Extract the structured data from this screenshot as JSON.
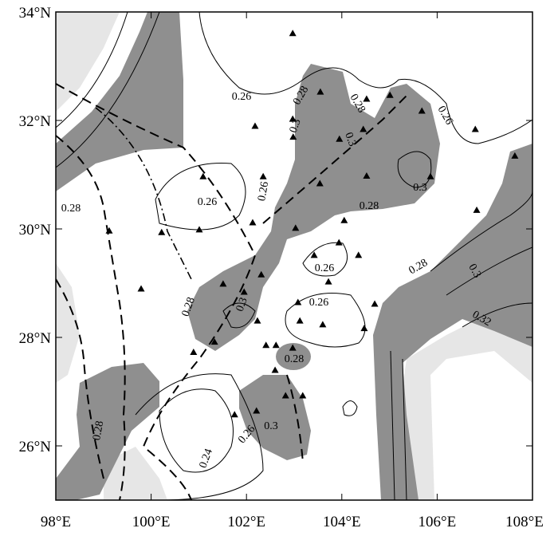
{
  "map": {
    "xlim": [
      98,
      108
    ],
    "ylim": [
      25,
      34
    ],
    "xticks": [
      {
        "value": 98,
        "label": "98°E"
      },
      {
        "value": 100,
        "label": "100°E"
      },
      {
        "value": 102,
        "label": "102°E"
      },
      {
        "value": 104,
        "label": "104°E"
      },
      {
        "value": 106,
        "label": "106°E"
      },
      {
        "value": 108,
        "label": "108°E"
      }
    ],
    "yticks": [
      {
        "value": 26,
        "label": "26°N"
      },
      {
        "value": 28,
        "label": "28°N"
      },
      {
        "value": 30,
        "label": "30°N"
      },
      {
        "value": 32,
        "label": "32°N"
      },
      {
        "value": 34,
        "label": "34°N"
      }
    ],
    "contour_labels": [
      "0.26",
      "0.28",
      "0.28",
      "0.3",
      "0.3",
      "0.26",
      "0.3",
      "0.26",
      "0.26",
      "0.28",
      "0.28",
      "0.26",
      "0.26",
      "0.28",
      "0.3",
      "0.32",
      "0.3",
      "0.28",
      "0.28",
      "0.3",
      "0.24",
      "0.26",
      "0.28"
    ],
    "stations": [
      [
        102.97,
        33.6
      ],
      [
        103.55,
        32.52
      ],
      [
        104.52,
        32.39
      ],
      [
        105.68,
        32.17
      ],
      [
        105.01,
        32.46
      ],
      [
        104.45,
        31.83
      ],
      [
        106.8,
        31.83
      ],
      [
        102.18,
        31.89
      ],
      [
        102.97,
        32.02
      ],
      [
        103.95,
        31.65
      ],
      [
        102.98,
        31.69
      ],
      [
        107.63,
        31.34
      ],
      [
        101.09,
        30.96
      ],
      [
        102.35,
        30.96
      ],
      [
        104.52,
        30.97
      ],
      [
        105.86,
        30.96
      ],
      [
        103.54,
        30.83
      ],
      [
        106.83,
        30.34
      ],
      [
        99.12,
        29.96
      ],
      [
        100.22,
        29.93
      ],
      [
        101.01,
        29.98
      ],
      [
        103.03,
        30.01
      ],
      [
        102.13,
        30.11
      ],
      [
        104.05,
        30.15
      ],
      [
        103.94,
        29.74
      ],
      [
        103.42,
        29.51
      ],
      [
        104.35,
        29.51
      ],
      [
        102.31,
        29.15
      ],
      [
        101.51,
        28.98
      ],
      [
        103.72,
        29.02
      ],
      [
        101.95,
        28.83
      ],
      [
        99.79,
        28.89
      ],
      [
        103.08,
        28.64
      ],
      [
        104.69,
        28.61
      ],
      [
        102.23,
        28.3
      ],
      [
        103.6,
        28.23
      ],
      [
        103.12,
        28.3
      ],
      [
        104.47,
        28.16
      ],
      [
        100.89,
        27.72
      ],
      [
        101.33,
        27.91
      ],
      [
        102.41,
        27.85
      ],
      [
        102.62,
        27.85
      ],
      [
        102.97,
        27.8
      ],
      [
        102.6,
        27.39
      ],
      [
        103.18,
        26.92
      ],
      [
        102.82,
        26.92
      ],
      [
        102.21,
        26.64
      ],
      [
        101.75,
        26.57
      ]
    ]
  }
}
